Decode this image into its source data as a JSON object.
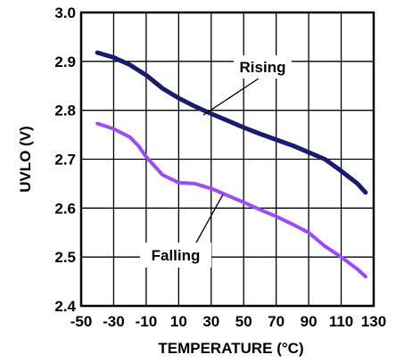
{
  "chart_data": {
    "type": "line",
    "xlabel": "TEMPERATURE (°C)",
    "ylabel": "UVLO (V)",
    "xlim": [
      -50,
      130
    ],
    "ylim": [
      2.4,
      3.0
    ],
    "x_ticks": [
      "-50",
      "-30",
      "-10",
      "10",
      "30",
      "50",
      "70",
      "90",
      "110",
      "130"
    ],
    "y_ticks": [
      "2.4",
      "2.5",
      "2.6",
      "2.7",
      "2.8",
      "2.9",
      "3.0"
    ],
    "grid": true,
    "series": [
      {
        "name": "Rising",
        "color": "#1a1a6e",
        "x": [
          -40,
          -30,
          -20,
          -10,
          0,
          10,
          20,
          30,
          40,
          50,
          60,
          70,
          80,
          90,
          100,
          110,
          120,
          125
        ],
        "y": [
          2.918,
          2.908,
          2.893,
          2.872,
          2.845,
          2.825,
          2.808,
          2.793,
          2.779,
          2.765,
          2.752,
          2.74,
          2.728,
          2.714,
          2.7,
          2.676,
          2.65,
          2.632
        ]
      },
      {
        "name": "Falling",
        "color": "#9a4dff",
        "x": [
          -40,
          -30,
          -20,
          -15,
          -10,
          0,
          10,
          20,
          30,
          40,
          50,
          60,
          70,
          80,
          90,
          100,
          110,
          120,
          125
        ],
        "y": [
          2.773,
          2.762,
          2.745,
          2.728,
          2.705,
          2.668,
          2.652,
          2.65,
          2.64,
          2.626,
          2.612,
          2.597,
          2.583,
          2.567,
          2.55,
          2.522,
          2.5,
          2.475,
          2.46
        ]
      }
    ],
    "annotations": [
      {
        "text": "Rising",
        "series": 0,
        "at_x": 30
      },
      {
        "text": "Falling",
        "series": 1,
        "at_x": 45
      }
    ]
  }
}
